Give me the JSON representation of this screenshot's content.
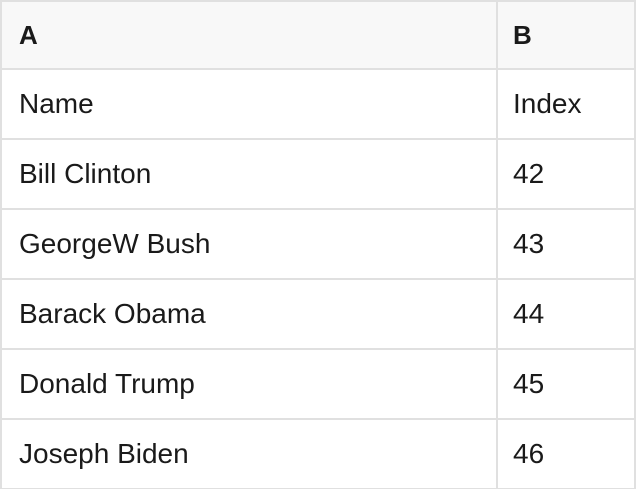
{
  "table": {
    "column_headers": {
      "a": "A",
      "b": "B"
    },
    "rows": [
      {
        "a": "Name",
        "b": "Index"
      },
      {
        "a": "Bill Clinton",
        "b": "42"
      },
      {
        "a": "GeorgeW Bush",
        "b": "43"
      },
      {
        "a": "Barack Obama",
        "b": "44"
      },
      {
        "a": "Donald Trump",
        "b": "45"
      },
      {
        "a": "Joseph Biden",
        "b": "46"
      }
    ]
  },
  "colors": {
    "header_background": "#f8f8f8",
    "row_background": "#ffffff",
    "border": "#e0e0e0",
    "text": "#1a1a1a"
  }
}
